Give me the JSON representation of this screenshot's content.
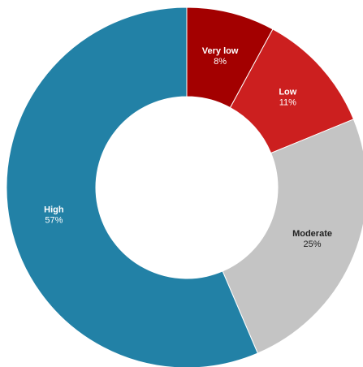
{
  "chart_data": {
    "type": "donut",
    "categories": [
      "Very low",
      "Low",
      "Moderate",
      "High"
    ],
    "values": [
      8,
      11,
      25,
      57
    ],
    "value_labels": [
      "8%",
      "11%",
      "25%",
      "57%"
    ],
    "colors": [
      "#a30000",
      "#cc1f1f",
      "#c4c4c4",
      "#2281a6"
    ],
    "label_colors": [
      "#ffffff",
      "#ffffff",
      "#222222",
      "#ffffff"
    ]
  }
}
